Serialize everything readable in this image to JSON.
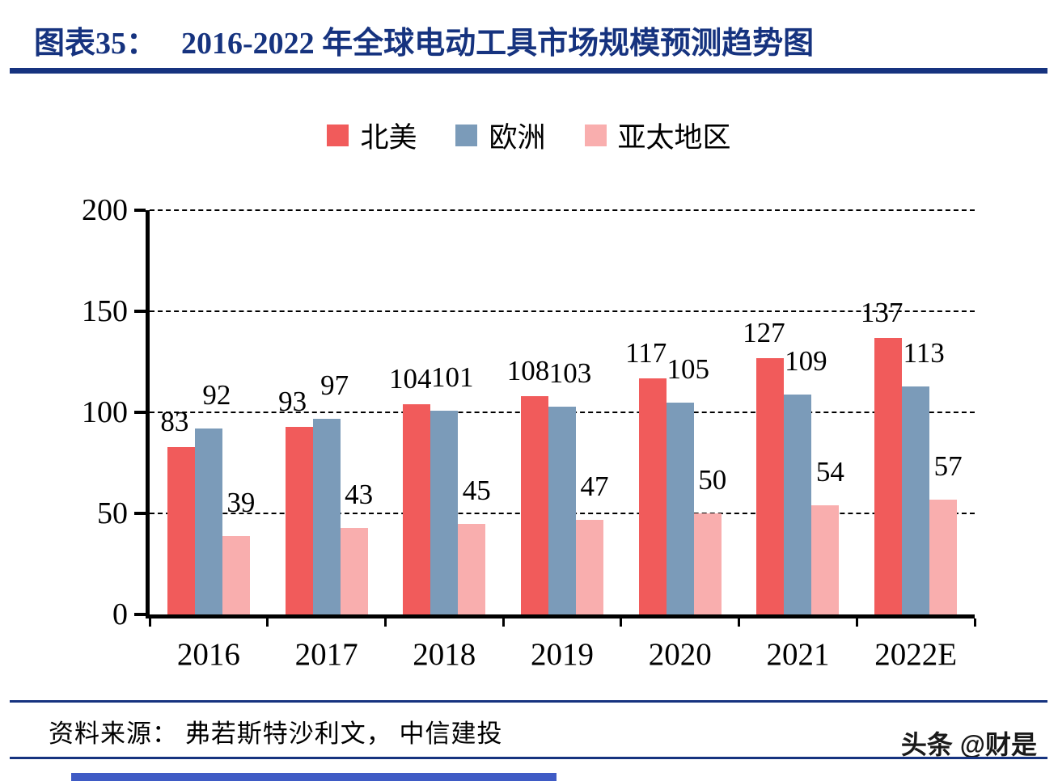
{
  "header": {
    "label": "图表35：",
    "title": "2016-2022 年全球电动工具市场规模预测趋势图"
  },
  "chart_data": {
    "type": "bar",
    "title": "2016-2022 年全球电动工具市场规模预测趋势图",
    "categories": [
      "2016",
      "2017",
      "2018",
      "2019",
      "2020",
      "2021",
      "2022E"
    ],
    "series": [
      {
        "name": "北美",
        "color": "#f15b5b",
        "values": [
          83,
          93,
          104,
          108,
          117,
          127,
          137
        ]
      },
      {
        "name": "欧洲",
        "color": "#7b9bb9",
        "values": [
          92,
          97,
          101,
          103,
          105,
          109,
          113
        ]
      },
      {
        "name": "亚太地区",
        "color": "#f9aeae",
        "values": [
          39,
          43,
          45,
          47,
          50,
          54,
          57
        ]
      }
    ],
    "xlabel": "",
    "ylabel": "",
    "ylim": [
      0,
      200
    ],
    "yticks": [
      0,
      50,
      100,
      150,
      200
    ],
    "grid": "horizontal-dashed",
    "legend_position": "top-center",
    "value_labels": true
  },
  "footer": {
    "source": "资料来源：  弗若斯特沙利文，  中信建投",
    "watermark": "头条 @财是"
  }
}
